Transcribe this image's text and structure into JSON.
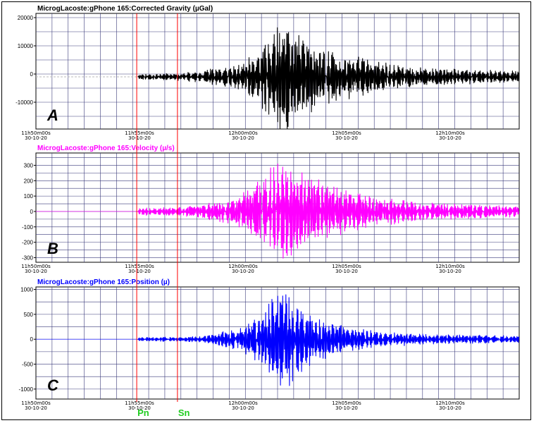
{
  "chart_data": [
    {
      "type": "line",
      "title": "MicrogLacoste:gPhone 165:Corrected Gravity (µGal)",
      "letter": "A",
      "color": "#000000",
      "ylim": [
        -19500,
        21500
      ],
      "yticks": [
        20000,
        10000,
        0,
        -10000
      ],
      "ytick_labels": [
        "20000",
        "10000",
        "0",
        "-10000"
      ],
      "x_range": [
        "11:50:00",
        "12:13:20"
      ],
      "xticks": [
        {
          "time": "11:50:00",
          "label1": "11h50m00s",
          "label2": "30-10-20"
        },
        {
          "time": "11:55:00",
          "label1": "11h55m00s",
          "label2": "30-10-20"
        },
        {
          "time": "12:00:00",
          "label1": "12h00m00s",
          "label2": "30-10-20"
        },
        {
          "time": "12:05:00",
          "label1": "12h05m00s",
          "label2": "30-10-20"
        },
        {
          "time": "12:10:00",
          "label1": "12h10m00s",
          "label2": "30-10-20"
        }
      ],
      "grid": true,
      "baseline_value": -1000,
      "series": [
        {
          "envelope_times": [
            "11:50:00",
            "11:54:55",
            "11:55:00",
            "11:57:00",
            "11:58:00",
            "12:00:00",
            "12:01:00",
            "12:02:00",
            "12:03:00",
            "12:04:00",
            "12:05:00",
            "12:07:00",
            "12:09:00",
            "12:13:20"
          ],
          "envelope_amplitudes": [
            0,
            0,
            900,
            1200,
            2200,
            5000,
            12000,
            22000,
            14000,
            10000,
            8000,
            5000,
            3000,
            2000
          ],
          "noise_amplitude": 200
        }
      ]
    },
    {
      "type": "line",
      "title": "MicrogLacoste:gPhone 165:Velocity (µ/s)",
      "letter": "B",
      "color": "#ff00ff",
      "ylim": [
        -330,
        380
      ],
      "yticks": [
        300,
        200,
        100,
        0,
        -100,
        -200,
        -300
      ],
      "ytick_labels": [
        "300",
        "200",
        "100",
        "0",
        "-100",
        "-200",
        "-300"
      ],
      "x_range": [
        "11:50:00",
        "12:13:20"
      ],
      "xticks": [
        {
          "time": "11:50:00",
          "label1": "11h50m00s",
          "label2": "30-10-20"
        },
        {
          "time": "11:55:00",
          "label1": "11h55m00s",
          "label2": "30-10-20"
        },
        {
          "time": "12:00:00",
          "label1": "12h00m00s",
          "label2": "30-10-20"
        },
        {
          "time": "12:05:00",
          "label1": "12h05m00s",
          "label2": "30-10-20"
        },
        {
          "time": "12:10:00",
          "label1": "12h10m00s",
          "label2": "30-10-20"
        }
      ],
      "grid": true,
      "baseline_value": 0,
      "series": [
        {
          "envelope_times": [
            "11:50:00",
            "11:54:55",
            "11:55:00",
            "11:57:00",
            "11:58:00",
            "12:00:00",
            "12:01:00",
            "12:02:00",
            "12:03:00",
            "12:04:00",
            "12:05:00",
            "12:07:00",
            "12:09:00",
            "12:13:20"
          ],
          "envelope_amplitudes": [
            0,
            0,
            25,
            30,
            45,
            120,
            260,
            360,
            250,
            190,
            140,
            90,
            60,
            35
          ],
          "noise_amplitude": 0
        }
      ]
    },
    {
      "type": "line",
      "title": "MicrogLacoste:gPhone 165:Position (µ)",
      "letter": "C",
      "color": "#0000ff",
      "ylim": [
        -1200,
        1050
      ],
      "yticks": [
        1000,
        500,
        0,
        -500,
        -1000
      ],
      "ytick_labels": [
        "1000",
        "500",
        "0",
        "-500",
        "-1000"
      ],
      "x_range": [
        "11:50:00",
        "12:13:20"
      ],
      "xticks": [
        {
          "time": "11:50:00",
          "label1": "11h50m00s",
          "label2": "30-10-20"
        },
        {
          "time": "11:55:00",
          "label1": "11h55m00s",
          "label2": "30-10-20"
        },
        {
          "time": "12:00:00",
          "label1": "12h00m00s",
          "label2": "30-10-20"
        },
        {
          "time": "12:05:00",
          "label1": "12h05m00s",
          "label2": "30-10-20"
        },
        {
          "time": "12:10:00",
          "label1": "12h10m00s",
          "label2": "30-10-20"
        }
      ],
      "grid": true,
      "baseline_value": 0,
      "series": [
        {
          "envelope_times": [
            "11:50:00",
            "11:54:55",
            "11:55:00",
            "11:57:00",
            "11:58:00",
            "12:00:00",
            "12:01:00",
            "12:02:00",
            "12:03:00",
            "12:04:00",
            "12:05:00",
            "12:07:00",
            "12:09:00",
            "12:13:20"
          ],
          "envelope_amplitudes": [
            0,
            0,
            40,
            45,
            60,
            250,
            700,
            1050,
            600,
            400,
            250,
            150,
            100,
            70
          ],
          "noise_amplitude": 0
        }
      ]
    }
  ],
  "phase_markers": [
    {
      "label": "Pn",
      "time": "11:54:52",
      "color": "#ff0000"
    },
    {
      "label": "Sn",
      "time": "11:56:50",
      "color": "#ff0000"
    }
  ]
}
